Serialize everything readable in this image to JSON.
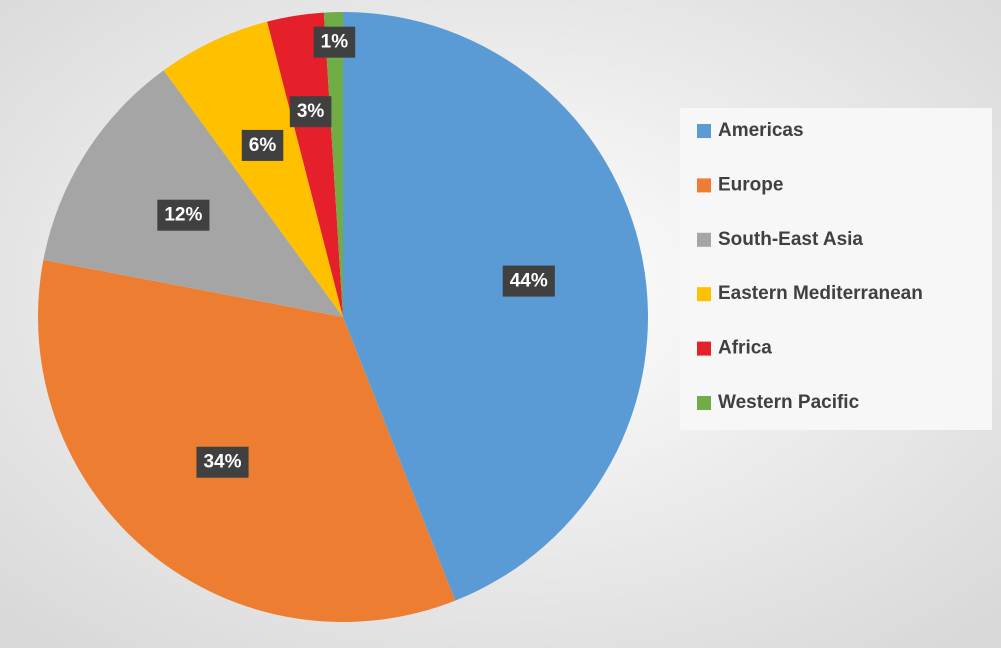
{
  "chart_data": {
    "type": "pie",
    "categories": [
      "Americas",
      "Europe",
      "South-East Asia",
      "Eastern Mediterranean",
      "Africa",
      "Western Pacific"
    ],
    "values": [
      44,
      34,
      12,
      6,
      3,
      1
    ],
    "value_labels": [
      "44%",
      "34%",
      "12%",
      "6%",
      "3%",
      "1%"
    ],
    "colors": [
      "#5b9bd5",
      "#ed7d31",
      "#a5a5a5",
      "#ffc000",
      "#e5202a",
      "#70ad47"
    ],
    "legend": "right"
  }
}
